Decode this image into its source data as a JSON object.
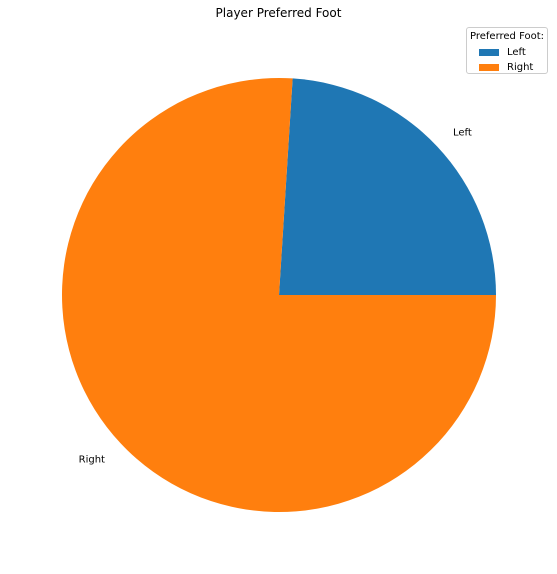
{
  "chart_data": {
    "type": "pie",
    "title": "Player Preferred Foot",
    "labels": [
      "Left",
      "Right"
    ],
    "values": [
      24,
      76
    ],
    "colors": [
      "#1f77b4",
      "#ff7f0e"
    ],
    "legend": {
      "title": "Preferred Foot:",
      "position": "top-right",
      "entries": [
        "Left",
        "Right"
      ]
    },
    "start_angle_deg": 0,
    "direction": "counterclockwise"
  }
}
